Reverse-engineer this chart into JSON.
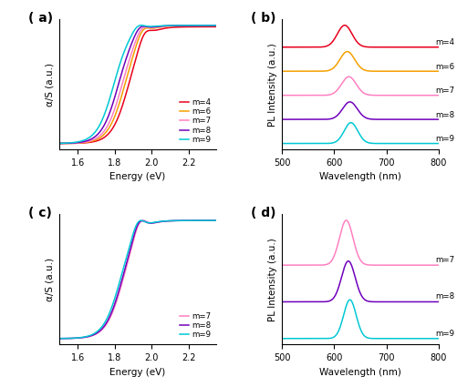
{
  "panel_labels": [
    "a",
    "b",
    "c",
    "d"
  ],
  "colors_ab": {
    "m4": "#e8001c",
    "m6": "#f5a000",
    "m7": "#ff80c0",
    "m8": "#7000bb",
    "m9": "#00c8d4"
  },
  "colors_cd": {
    "m7": "#ff80c0",
    "m8": "#7000bb",
    "m9": "#00c8d4"
  },
  "ylabel_abs": "α/S (a.u.)",
  "ylabel_pl": "PL Intensity (a.u.)",
  "xlabel_abs": "Energy (eV)",
  "xlabel_pl": "Wavelength (nm)",
  "xlim_abs": [
    1.5,
    2.35
  ],
  "xlim_pl": [
    500,
    800
  ],
  "xticks_abs": [
    1.6,
    1.8,
    2.0,
    2.2
  ],
  "xticks_pl": [
    500,
    600,
    700,
    800
  ],
  "legend_ab_loc": "lower right",
  "legend_cd_loc": "lower right"
}
